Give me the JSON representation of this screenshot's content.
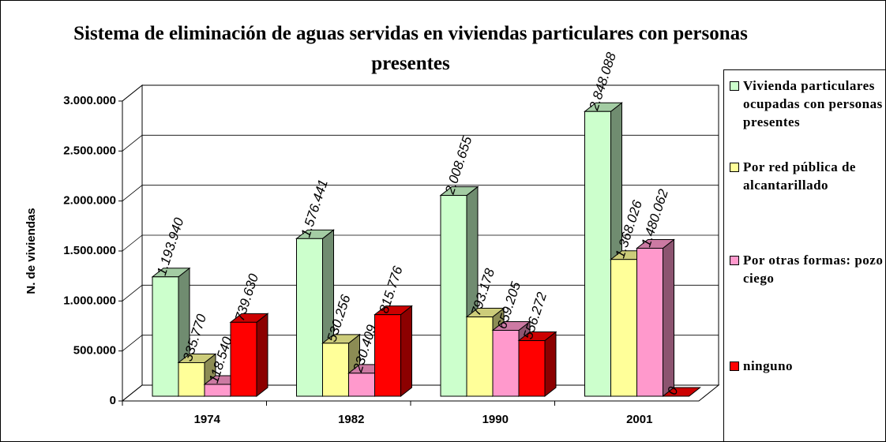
{
  "chart_data": {
    "type": "bar3d",
    "title": "Sistema de eliminación de aguas servidas en viviendas particulares con personas presentes",
    "y_label": "N. de viviendas",
    "categories": [
      "1974",
      "1982",
      "1990",
      "2001"
    ],
    "series": [
      {
        "name": "Vivienda particulares ocupadas con personas presentes",
        "color": "#ccffcc",
        "values": [
          1193940,
          1576441,
          2008655,
          2848088
        ],
        "value_labels": [
          "1.193.940",
          "1.576.441",
          "2.008.655",
          "2.848.088"
        ]
      },
      {
        "name": "Por red pública de alcantarillado",
        "color": "#ffff99",
        "values": [
          335770,
          530256,
          793178,
          1368026
        ],
        "value_labels": [
          "335.770",
          "530.256",
          "793.178",
          "1.368.026"
        ]
      },
      {
        "name": "Por otras formas: pozo ciego",
        "color": "#ff99cc",
        "values": [
          118540,
          230409,
          659205,
          1480062
        ],
        "value_labels": [
          "118.540",
          "230.409",
          "659.205",
          "1.480.062"
        ]
      },
      {
        "name": "ninguno",
        "color": "#ff0000",
        "values": [
          739630,
          815776,
          556272,
          0
        ],
        "value_labels": [
          "739.630",
          "815.776",
          "556.272",
          "0"
        ]
      }
    ],
    "ylim": [
      0,
      3000000
    ],
    "yticks": [
      0,
      {
        "value": 500000,
        "label": "500.000"
      },
      {
        "value": 1000000,
        "label": "1.000.000"
      },
      {
        "value": 1500000,
        "label": "1.500.000"
      },
      {
        "value": 2000000,
        "label": "2.000.000"
      },
      {
        "value": 2500000,
        "label": "2.500.000"
      },
      {
        "value": 3000000,
        "label": "3.000.000"
      }
    ],
    "grid": true,
    "legend": "right"
  }
}
